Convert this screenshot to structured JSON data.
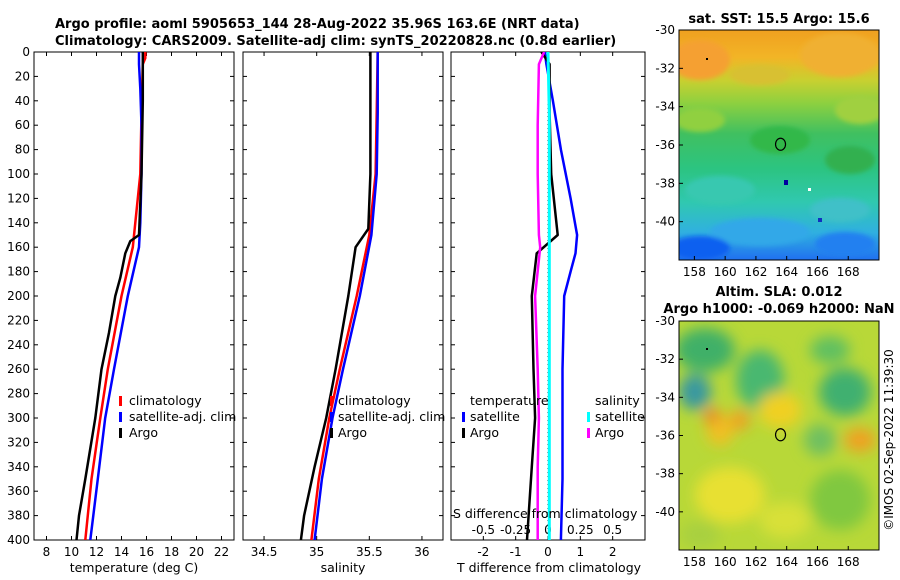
{
  "title_line1": "Argo profile: aoml 5905653_144 28-Aug-2022 35.96S 163.6E (NRT data)",
  "title_line2": "Climatology: CARS2009. Satellite-adj clim: synTS_20220828.nc (0.8d earlier)",
  "sst_title": "sat. SST: 15.5 Argo: 15.6",
  "sla_title1": "Altim. SLA: 0.012",
  "sla_title2": "Argo h1000: -0.069 h2000: NaN",
  "copyright": "©IMOS 02-Sep-2022 11:39:30",
  "colors": {
    "climatology": "#ff0000",
    "satellite": "#0000ff",
    "argo": "#000000",
    "sal_clim": "#00ffff",
    "sal_argo": "#ff00ff"
  },
  "chart_data": [
    {
      "type": "line",
      "name": "temperature-profile",
      "xlabel": "temperature (deg C)",
      "ylabel": "",
      "xlim": [
        7,
        23
      ],
      "ylim": [
        400,
        0
      ],
      "xticks": [
        "8",
        "10",
        "12",
        "14",
        "16",
        "18",
        "20",
        "22"
      ],
      "xtick_values": [
        8,
        10,
        12,
        14,
        16,
        18,
        20,
        22
      ],
      "yticks": [
        "0",
        "20",
        "40",
        "60",
        "80",
        "100",
        "120",
        "140",
        "160",
        "180",
        "200",
        "220",
        "240",
        "260",
        "280",
        "300",
        "320",
        "340",
        "360",
        "380",
        "400"
      ],
      "ytick_values": [
        0,
        20,
        40,
        60,
        80,
        100,
        120,
        140,
        160,
        180,
        200,
        220,
        240,
        260,
        280,
        300,
        320,
        340,
        360,
        380,
        400
      ],
      "legend": [
        "climatology",
        "satellite-adj. clim",
        "Argo"
      ],
      "series": [
        {
          "name": "climatology",
          "color": "#ff0000",
          "width": 2.5,
          "depth": [
            0,
            5,
            10,
            50,
            100,
            140,
            160,
            200,
            260,
            300,
            350,
            400
          ],
          "values": [
            15.9,
            15.9,
            15.7,
            15.6,
            15.5,
            15.1,
            14.9,
            14.0,
            12.9,
            12.3,
            11.6,
            11.1
          ]
        },
        {
          "name": "satellite-adj. clim",
          "color": "#0000ff",
          "width": 2.5,
          "depth": [
            0,
            10,
            30,
            60,
            100,
            140,
            160,
            200,
            260,
            300,
            350,
            400
          ],
          "values": [
            15.4,
            15.4,
            15.5,
            15.6,
            15.6,
            15.5,
            15.4,
            14.5,
            13.4,
            12.7,
            12.1,
            11.5
          ]
        },
        {
          "name": "Argo",
          "color": "#000000",
          "width": 2.5,
          "depth": [
            0,
            5,
            10,
            40,
            100,
            150,
            155,
            165,
            185,
            200,
            230,
            260,
            300,
            350,
            380,
            400
          ],
          "values": [
            15.7,
            15.7,
            15.7,
            15.7,
            15.6,
            15.4,
            14.7,
            14.3,
            13.9,
            13.5,
            13.0,
            12.4,
            11.9,
            11.1,
            10.6,
            10.4
          ]
        }
      ]
    },
    {
      "type": "line",
      "name": "salinity-profile",
      "xlabel": "salinity",
      "xlim": [
        34.3,
        36.2
      ],
      "ylim": [
        400,
        0
      ],
      "xticks": [
        "34.5",
        "35",
        "35.5",
        "36"
      ],
      "xtick_values": [
        34.5,
        35,
        35.5,
        36
      ],
      "legend": [
        "climatology",
        "satellite-adj. clim",
        "Argo"
      ],
      "series": [
        {
          "name": "climatology",
          "color": "#ff0000",
          "width": 2.5,
          "depth": [
            0,
            50,
            100,
            150,
            200,
            260,
            300,
            350,
            400
          ],
          "values": [
            35.58,
            35.57,
            35.56,
            35.5,
            35.38,
            35.22,
            35.12,
            35.02,
            34.95
          ]
        },
        {
          "name": "satellite-adj. clim",
          "color": "#0000ff",
          "width": 2.5,
          "depth": [
            0,
            50,
            100,
            150,
            200,
            260,
            300,
            350,
            400
          ],
          "values": [
            35.58,
            35.58,
            35.57,
            35.52,
            35.41,
            35.25,
            35.15,
            35.05,
            34.98
          ]
        },
        {
          "name": "Argo",
          "color": "#000000",
          "width": 2.5,
          "depth": [
            0,
            50,
            100,
            145,
            160,
            200,
            260,
            300,
            340,
            380,
            400
          ],
          "values": [
            35.51,
            35.51,
            35.51,
            35.49,
            35.37,
            35.3,
            35.18,
            35.09,
            34.98,
            34.88,
            34.85
          ]
        }
      ]
    },
    {
      "type": "line",
      "name": "difference-profile",
      "xlabel": "T difference from climatology",
      "xlabel_top": "S difference from climatology",
      "xlim": [
        -3,
        3
      ],
      "ylim": [
        400,
        0
      ],
      "xticks": [
        "-2",
        "-1",
        "0",
        "1",
        "2"
      ],
      "xtick_values": [
        -2,
        -1,
        0,
        1,
        2
      ],
      "sticks": [
        "-0.5",
        "-0.25",
        "0",
        "0.25",
        "0.5"
      ],
      "stick_values": [
        -0.5,
        -0.25,
        0,
        0.25,
        0.5
      ],
      "legend_t_heading": "temperature",
      "legend_s_heading": "salinity",
      "legend": [
        "satellite",
        "Argo",
        "satellite",
        "Argo"
      ],
      "series": [
        {
          "name": "T satellite",
          "color": "#0000ff",
          "width": 2.5,
          "depth": [
            0,
            10,
            40,
            80,
            120,
            150,
            165,
            180,
            200,
            260,
            300,
            350,
            400
          ],
          "values": [
            -0.1,
            -0.05,
            0.15,
            0.4,
            0.7,
            0.9,
            0.85,
            0.7,
            0.5,
            0.45,
            0.45,
            0.45,
            0.4
          ]
        },
        {
          "name": "T Argo",
          "color": "#000000",
          "width": 2.5,
          "depth": [
            0,
            10,
            50,
            100,
            150,
            165,
            200,
            260,
            300,
            340,
            380,
            400
          ],
          "values": [
            -0.2,
            0.05,
            0.05,
            0.1,
            0.3,
            -0.35,
            -0.5,
            -0.45,
            -0.4,
            -0.5,
            -0.6,
            -0.65
          ]
        },
        {
          "name": "S satellite",
          "color": "#00ffff",
          "width": 3,
          "depth": [
            0,
            50,
            100,
            200,
            300,
            400
          ],
          "values": [
            0.0,
            0.01,
            0.01,
            0.01,
            0.01,
            0.01
          ]
        },
        {
          "name": "S Argo",
          "color": "#ff00ff",
          "width": 2.5,
          "depth": [
            0,
            10,
            60,
            100,
            150,
            160,
            200,
            260,
            300,
            340,
            400
          ],
          "values": [
            -0.03,
            -0.07,
            -0.08,
            -0.08,
            -0.07,
            -0.06,
            -0.1,
            -0.08,
            -0.07,
            -0.08,
            -0.08
          ]
        }
      ]
    },
    {
      "type": "heatmap",
      "name": "sst-map",
      "title": "sat. SST: 15.5 Argo: 15.6",
      "xlim": [
        157,
        170
      ],
      "ylim": [
        -42,
        -30
      ],
      "xticks": [
        "158",
        "160",
        "162",
        "164",
        "166",
        "168"
      ],
      "xtick_values": [
        158,
        160,
        162,
        164,
        166,
        168
      ],
      "yticks": [
        "-30",
        "-32",
        "-34",
        "-36",
        "-38",
        "-40"
      ],
      "ytick_values": [
        -30,
        -32,
        -34,
        -36,
        -38,
        -40
      ],
      "marker": {
        "lon": 163.6,
        "lat": -35.96
      }
    },
    {
      "type": "heatmap",
      "name": "sla-map",
      "title": "Altim. SLA: 0.012",
      "xlim": [
        157,
        170
      ],
      "ylim": [
        -42,
        -30
      ],
      "xticks": [
        "158",
        "160",
        "162",
        "164",
        "166",
        "168"
      ],
      "xtick_values": [
        158,
        160,
        162,
        164,
        166,
        168
      ],
      "yticks": [
        "-30",
        "-32",
        "-34",
        "-36",
        "-38",
        "-40"
      ],
      "ytick_values": [
        -30,
        -32,
        -34,
        -36,
        -38,
        -40
      ],
      "marker": {
        "lon": 163.6,
        "lat": -35.96
      }
    }
  ]
}
